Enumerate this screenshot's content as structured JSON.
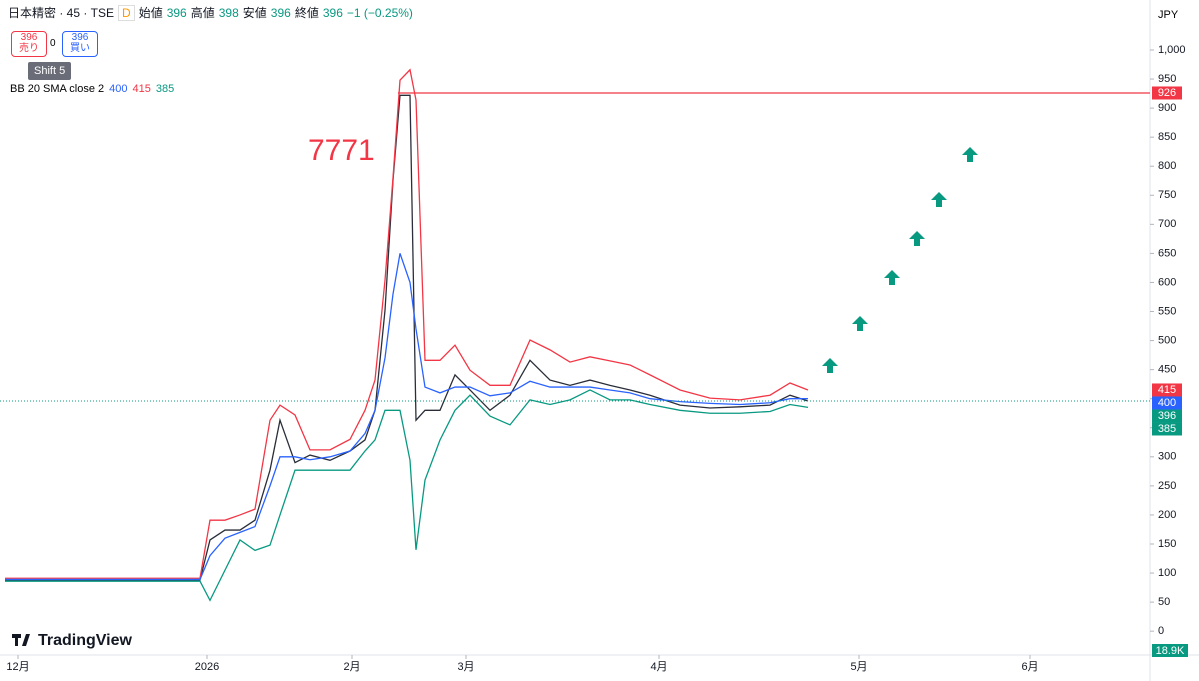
{
  "header": {
    "symbol": "日本精密 · 45 · TSE",
    "flag": "D",
    "open_label": "始値",
    "open": "396",
    "high_label": "高値",
    "high": "398",
    "low_label": "安値",
    "low": "396",
    "close_label": "終値",
    "close": "396",
    "change": "−1 (−0.25%)",
    "sell_price": "396",
    "sell": "売り",
    "spread": "0",
    "buy_price": "396",
    "buy": "買い",
    "tooltip_key": "Shift",
    "tooltip_num": "5",
    "indicator": "BB 20 SMA close 2",
    "ind_basis": "400",
    "ind_upper": "415",
    "ind_lower": "385",
    "currency": "JPY",
    "brand": "TradingView",
    "volume": "18.9K"
  },
  "chart_data": {
    "type": "line",
    "annotation": "7771",
    "x": [
      5,
      200,
      210,
      225,
      240,
      255,
      270,
      280,
      295,
      310,
      330,
      350,
      365,
      375,
      385,
      393,
      400,
      410,
      416,
      425,
      440,
      455,
      470,
      490,
      510,
      530,
      550,
      570,
      590,
      610,
      630,
      650,
      680,
      710,
      740,
      770,
      790,
      808
    ],
    "series": [
      {
        "color": "#2a2e39",
        "values": [
          88,
          88,
          157,
          174,
          174,
          191,
          277,
          363,
          290,
          303,
          294,
          310,
          329,
          380,
          552,
          776,
          922,
          922,
          363,
          380,
          380,
          441,
          415,
          380,
          406,
          466,
          432,
          423,
          432,
          423,
          415,
          406,
          389,
          384,
          386,
          389,
          406,
          396
        ]
      },
      {
        "color": "#f23645",
        "values": [
          91,
          91,
          191,
          191,
          200,
          210,
          363,
          389,
          372,
          312,
          312,
          330,
          380,
          432,
          604,
          780,
          948,
          966,
          914,
          466,
          466,
          492,
          449,
          423,
          423,
          501,
          484,
          463,
          472,
          465,
          458,
          441,
          415,
          401,
          398,
          406,
          427,
          415
        ]
      },
      {
        "color": "#2962ff",
        "values": [
          89,
          89,
          130,
          160,
          170,
          180,
          250,
          300,
          300,
          295,
          300,
          310,
          340,
          380,
          470,
          580,
          650,
          600,
          520,
          420,
          410,
          420,
          420,
          405,
          410,
          430,
          420,
          420,
          420,
          415,
          410,
          400,
          395,
          392,
          390,
          393,
          400,
          400
        ]
      },
      {
        "color": "#089981",
        "values": [
          86,
          86,
          53,
          105,
          157,
          139,
          148,
          200,
          277,
          277,
          277,
          277,
          310,
          329,
          380,
          380,
          380,
          294,
          140,
          260,
          329,
          380,
          406,
          370,
          355,
          398,
          390,
          398,
          415,
          398,
          398,
          390,
          380,
          375,
          375,
          378,
          390,
          385
        ]
      }
    ],
    "xlim": [
      0,
      1150
    ],
    "xticks": [
      {
        "value": 18,
        "label": "12月"
      },
      {
        "value": 207,
        "label": "2026"
      },
      {
        "value": 352,
        "label": "2月"
      },
      {
        "value": 466,
        "label": "3月"
      },
      {
        "value": 659,
        "label": "4月"
      },
      {
        "value": 859,
        "label": "5月"
      },
      {
        "value": 1030,
        "label": "6月"
      }
    ],
    "ylim": [
      -41,
      1086
    ],
    "yticks": [
      0,
      50,
      100,
      150,
      200,
      250,
      300,
      350,
      400,
      450,
      500,
      550,
      600,
      650,
      700,
      750,
      800,
      850,
      900,
      950,
      {
        "value": 1000,
        "label": "1,000"
      }
    ],
    "hline": 926,
    "price_labels": [
      {
        "value": 926,
        "color": "#f23645"
      },
      {
        "value": 415,
        "color": "#f23645"
      },
      {
        "value": 400,
        "color": "#2962ff"
      },
      {
        "value": 396,
        "color": "#089981"
      },
      {
        "value": 385,
        "color": "#089981"
      }
    ]
  }
}
